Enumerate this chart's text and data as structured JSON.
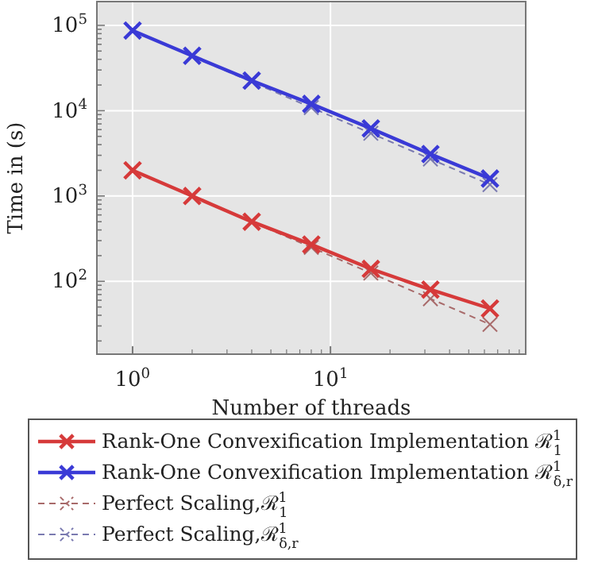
{
  "chart_data": {
    "type": "line",
    "xlabel": "Number of threads",
    "ylabel": "Time in (s)",
    "log": "xy",
    "grid": true,
    "legend": "bottom",
    "marker": "cross",
    "x": [
      1,
      2,
      4,
      8,
      16,
      32,
      64
    ],
    "xlim": [
      0.66,
      97
    ],
    "xticks": [
      {
        "value": 1,
        "label": "10$^{0}$"
      },
      {
        "value": 10,
        "label": "10$^{1}$"
      },
      {
        "value": 2,
        "label": null
      },
      {
        "value": 3,
        "label": null
      },
      {
        "value": 4,
        "label": null
      },
      {
        "value": 5,
        "label": null
      },
      {
        "value": 6,
        "label": null
      },
      {
        "value": 7,
        "label": null
      },
      {
        "value": 8,
        "label": null
      },
      {
        "value": 9,
        "label": null
      },
      {
        "value": 20,
        "label": null
      },
      {
        "value": 30,
        "label": null
      },
      {
        "value": 40,
        "label": null
      },
      {
        "value": 50,
        "label": null
      },
      {
        "value": 60,
        "label": null
      },
      {
        "value": 70,
        "label": null
      },
      {
        "value": 80,
        "label": null
      },
      {
        "value": 90,
        "label": null
      }
    ],
    "ylim": [
      14,
      190000
    ],
    "yticks": [
      {
        "value": 100,
        "label": "10$^{2}$"
      },
      {
        "value": 1000,
        "label": "10$^{3}$"
      },
      {
        "value": 10000,
        "label": "10$^{4}$"
      },
      {
        "value": 100000,
        "label": "10$^{5}$"
      },
      {
        "value": 20,
        "label": null
      },
      {
        "value": 30,
        "label": null
      },
      {
        "value": 40,
        "label": null
      },
      {
        "value": 50,
        "label": null
      },
      {
        "value": 60,
        "label": null
      },
      {
        "value": 70,
        "label": null
      },
      {
        "value": 80,
        "label": null
      },
      {
        "value": 90,
        "label": null
      },
      {
        "value": 200,
        "label": null
      },
      {
        "value": 300,
        "label": null
      },
      {
        "value": 400,
        "label": null
      },
      {
        "value": 500,
        "label": null
      },
      {
        "value": 600,
        "label": null
      },
      {
        "value": 700,
        "label": null
      },
      {
        "value": 800,
        "label": null
      },
      {
        "value": 900,
        "label": null
      },
      {
        "value": 2000,
        "label": null
      },
      {
        "value": 3000,
        "label": null
      },
      {
        "value": 4000,
        "label": null
      },
      {
        "value": 5000,
        "label": null
      },
      {
        "value": 6000,
        "label": null
      },
      {
        "value": 7000,
        "label": null
      },
      {
        "value": 8000,
        "label": null
      },
      {
        "value": 9000,
        "label": null
      },
      {
        "value": 20000,
        "label": null
      },
      {
        "value": 30000,
        "label": null
      },
      {
        "value": 40000,
        "label": null
      },
      {
        "value": 50000,
        "label": null
      },
      {
        "value": 60000,
        "label": null
      },
      {
        "value": 70000,
        "label": null
      },
      {
        "value": 80000,
        "label": null
      },
      {
        "value": 90000,
        "label": null
      }
    ],
    "series": [
      {
        "name": "Rank-One Convexification Implementation ℛ$^{1}$$_{1}$",
        "color": "#d63a3a",
        "line_style": "solid",
        "values": [
          2000,
          1000,
          500,
          270,
          140,
          80,
          48
        ]
      },
      {
        "name": "Rank-One Convexification Implementation ℛ$^{1}$$_{δ,r}$",
        "color": "#3a3ad6",
        "line_style": "solid",
        "values": [
          87000,
          44000,
          22500,
          12000,
          6200,
          3100,
          1600
        ]
      },
      {
        "name": "Perfect Scaling,ℛ$^{1}$$_{1}$",
        "color": "#a86a6a",
        "line_style": "dashed",
        "values": [
          2000,
          1000,
          500,
          250,
          125,
          62.5,
          31.25
        ]
      },
      {
        "name": "Perfect Scaling,ℛ$^{1}$$_{δ,r}$",
        "color": "#7a7ab0",
        "line_style": "dashed",
        "values": [
          87000,
          43500,
          21750,
          10875,
          5437.5,
          2718.75,
          1359.375
        ]
      }
    ]
  }
}
